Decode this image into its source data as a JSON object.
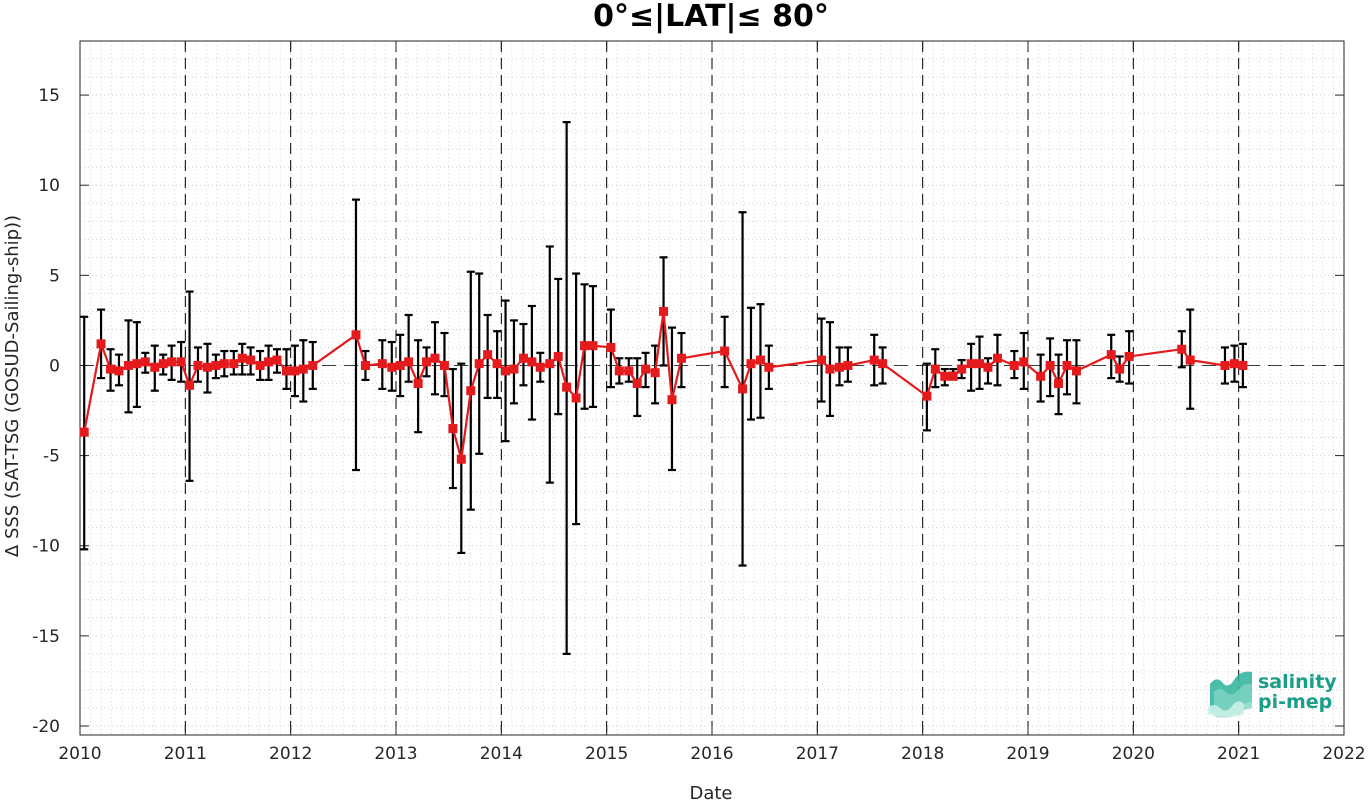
{
  "chart_data": {
    "type": "line",
    "title": "0°≤|LAT|≤ 80°",
    "xlabel": "Date",
    "ylabel": "Δ SSS (SAT-TSG (GOSUD-Sailing-ship))",
    "xlim": [
      2010,
      2022
    ],
    "ylim": [
      -20.5,
      18
    ],
    "xticks": [
      "2010",
      "2011",
      "2012",
      "2013",
      "2014",
      "2015",
      "2016",
      "2017",
      "2018",
      "2019",
      "2020",
      "2021",
      "2022"
    ],
    "yticks": [
      "-20",
      "-15",
      "-10",
      "-5",
      "0",
      "5",
      "10",
      "15"
    ],
    "grid": true,
    "year_dividers": [
      "2011",
      "2012",
      "2013",
      "2014",
      "2015",
      "2016",
      "2017",
      "2018",
      "2019",
      "2020",
      "2021"
    ],
    "zero_line": 0,
    "series": [
      {
        "color": "#e41a1c",
        "marker": "square",
        "errorbar_color": "#000000",
        "x": [
          2010.04,
          2010.2,
          2010.29,
          2010.37,
          2010.46,
          2010.54,
          2010.62,
          2010.71,
          2010.79,
          2010.87,
          2010.96,
          2011.04,
          2011.12,
          2011.21,
          2011.29,
          2011.37,
          2011.46,
          2011.54,
          2011.62,
          2011.71,
          2011.79,
          2011.87,
          2011.96,
          2012.04,
          2012.12,
          2012.21,
          2012.62,
          2012.71,
          2012.87,
          2012.96,
          2013.04,
          2013.12,
          2013.21,
          2013.29,
          2013.37,
          2013.46,
          2013.54,
          2013.62,
          2013.71,
          2013.79,
          2013.87,
          2013.96,
          2014.04,
          2014.12,
          2014.21,
          2014.29,
          2014.37,
          2014.46,
          2014.54,
          2014.62,
          2014.71,
          2014.79,
          2014.87,
          2015.04,
          2015.12,
          2015.21,
          2015.29,
          2015.37,
          2015.46,
          2015.54,
          2015.62,
          2015.71,
          2016.12,
          2016.29,
          2016.37,
          2016.46,
          2016.54,
          2017.04,
          2017.12,
          2017.21,
          2017.29,
          2017.54,
          2017.62,
          2018.04,
          2018.12,
          2018.21,
          2018.29,
          2018.37,
          2018.46,
          2018.54,
          2018.62,
          2018.71,
          2018.87,
          2018.96,
          2019.12,
          2019.21,
          2019.29,
          2019.37,
          2019.46,
          2019.79,
          2019.87,
          2019.96,
          2020.46,
          2020.54,
          2020.87,
          2020.96,
          2021.04
        ],
        "y": [
          -3.7,
          1.2,
          -0.2,
          -0.3,
          0.0,
          0.1,
          0.2,
          -0.1,
          0.1,
          0.2,
          0.2,
          -1.1,
          0.0,
          -0.1,
          0.0,
          0.1,
          0.1,
          0.4,
          0.3,
          0.0,
          0.2,
          0.3,
          -0.3,
          -0.3,
          -0.2,
          0.0,
          1.7,
          0.0,
          0.1,
          -0.1,
          0.0,
          0.2,
          -1.0,
          0.2,
          0.4,
          0.0,
          -3.5,
          -5.2,
          -1.4,
          0.1,
          0.6,
          0.1,
          -0.3,
          -0.2,
          0.4,
          0.2,
          -0.1,
          0.1,
          0.5,
          -1.2,
          -1.8,
          1.1,
          1.1,
          1.0,
          -0.3,
          -0.3,
          -1.0,
          -0.2,
          -0.4,
          3.0,
          -1.9,
          0.4,
          0.8,
          -1.3,
          0.1,
          0.3,
          -0.1,
          0.3,
          -0.2,
          -0.1,
          0.0,
          0.3,
          0.1,
          -1.7,
          -0.2,
          -0.6,
          -0.6,
          -0.2,
          0.1,
          0.1,
          -0.1,
          0.4,
          0.0,
          0.2,
          -0.6,
          0.0,
          -1.0,
          0.0,
          -0.3,
          0.6,
          -0.2,
          0.5,
          0.9,
          0.3,
          0.0,
          0.1,
          0.0
        ],
        "err_low": [
          -10.2,
          -0.7,
          -1.4,
          -1.1,
          -2.6,
          -2.3,
          -0.4,
          -1.4,
          -0.5,
          -0.8,
          -0.9,
          -6.4,
          -0.9,
          -1.5,
          -0.7,
          -0.6,
          -0.5,
          -0.5,
          -0.5,
          -0.8,
          -0.8,
          -0.4,
          -1.3,
          -1.7,
          -2.0,
          -1.3,
          -5.8,
          -0.8,
          -1.3,
          -1.4,
          -1.7,
          -0.9,
          -3.7,
          -0.6,
          -1.6,
          -1.7,
          -6.8,
          -10.4,
          -8.0,
          -4.9,
          -1.8,
          -1.8,
          -4.2,
          -2.1,
          -1.1,
          -3.0,
          -0.9,
          -6.5,
          -2.7,
          -16.0,
          -8.8,
          -2.4,
          -2.3,
          -1.2,
          -1.0,
          -0.9,
          -2.8,
          -1.2,
          -2.1,
          0.0,
          -5.8,
          -1.2,
          -1.2,
          -11.1,
          -3.0,
          -2.9,
          -1.3,
          -2.0,
          -2.8,
          -1.1,
          -0.9,
          -1.1,
          -1.0,
          -3.6,
          -1.2,
          -1.1,
          -0.4,
          -0.7,
          -1.4,
          -1.3,
          -1.0,
          -1.1,
          -0.7,
          -1.3,
          -2.0,
          -1.7,
          -2.7,
          -1.6,
          -2.1,
          -0.7,
          -0.9,
          -1.0,
          -0.1,
          -2.4,
          -1.0,
          -0.9,
          -1.2
        ],
        "err_high": [
          2.7,
          3.1,
          0.9,
          0.6,
          2.5,
          2.4,
          0.7,
          1.1,
          0.6,
          1.1,
          1.3,
          4.1,
          1.0,
          1.2,
          0.6,
          0.8,
          0.8,
          1.2,
          1.0,
          0.8,
          1.1,
          0.9,
          0.9,
          1.1,
          1.4,
          1.3,
          9.2,
          0.8,
          1.4,
          1.3,
          1.7,
          2.8,
          1.4,
          1.0,
          2.4,
          1.8,
          -0.2,
          0.1,
          5.2,
          5.1,
          2.8,
          1.9,
          3.6,
          2.5,
          2.3,
          3.3,
          0.7,
          6.6,
          4.8,
          13.5,
          5.1,
          4.5,
          4.4,
          3.1,
          0.4,
          0.4,
          0.4,
          0.7,
          1.1,
          6.0,
          2.1,
          1.8,
          2.7,
          8.5,
          3.2,
          3.4,
          1.1,
          2.6,
          2.4,
          1.0,
          1.0,
          1.7,
          1.0,
          0.1,
          0.9,
          -0.2,
          -0.2,
          0.3,
          1.2,
          1.6,
          0.4,
          1.7,
          0.8,
          1.8,
          0.6,
          1.5,
          0.6,
          1.4,
          1.4,
          1.7,
          0.5,
          1.9,
          1.9,
          3.1,
          1.0,
          1.1,
          1.2
        ]
      }
    ]
  },
  "logo": {
    "line1": "salinity",
    "line2": "pi-mep",
    "color": "#1a9e8a"
  }
}
